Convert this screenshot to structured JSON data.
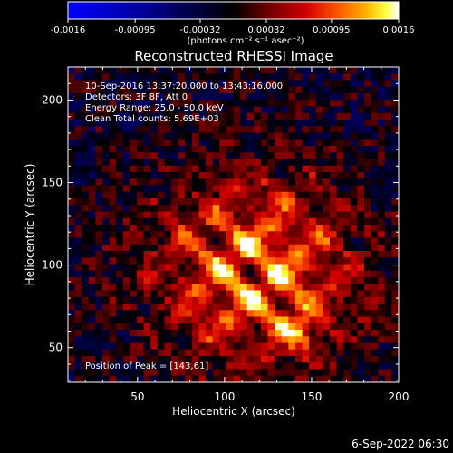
{
  "chart_data": {
    "type": "heatmap",
    "title": "Reconstructed RHESSI Image",
    "xlabel": "Heliocentric X (arcsec)",
    "ylabel": "Heliocentric Y (arcsec)",
    "xlim": [
      10,
      200
    ],
    "ylim": [
      29,
      220
    ],
    "xticks": [
      50,
      100,
      150,
      200
    ],
    "yticks": [
      50,
      100,
      150,
      200
    ],
    "colorbar": {
      "min": -0.0016,
      "max": 0.0016,
      "ticks": [
        "-0.0016",
        "-0.00095",
        "-0.00032",
        "0.00032",
        "0.00095",
        "0.0016"
      ],
      "unit_label": "(photons cm⁻² s⁻¹ asec⁻²)",
      "colormap": "blue-black-red-yellow-white"
    },
    "annotations": [
      "10-Sep-2016 13:37:20.000 to 13:43:16.000",
      "Detectors: 3F 8F, Att 0",
      "Energy Range: 25.0 - 50.0 keV",
      "Clean     Total counts: 5.69E+03"
    ],
    "peak": {
      "label": "Position of Peak = [143,61]",
      "x": 143,
      "y": 61
    },
    "source_center": [
      118,
      96
    ],
    "grid": false,
    "legend": "none"
  },
  "footer": {
    "timestamp": "6-Sep-2022 06:30"
  },
  "colors": {
    "background": "#000000",
    "text": "#ffffff",
    "colormap_stops": [
      "#0000ff",
      "#00008a",
      "#000000",
      "#5a0000",
      "#c00000",
      "#ff4500",
      "#ffa500",
      "#ffff00",
      "#ffffff"
    ]
  }
}
